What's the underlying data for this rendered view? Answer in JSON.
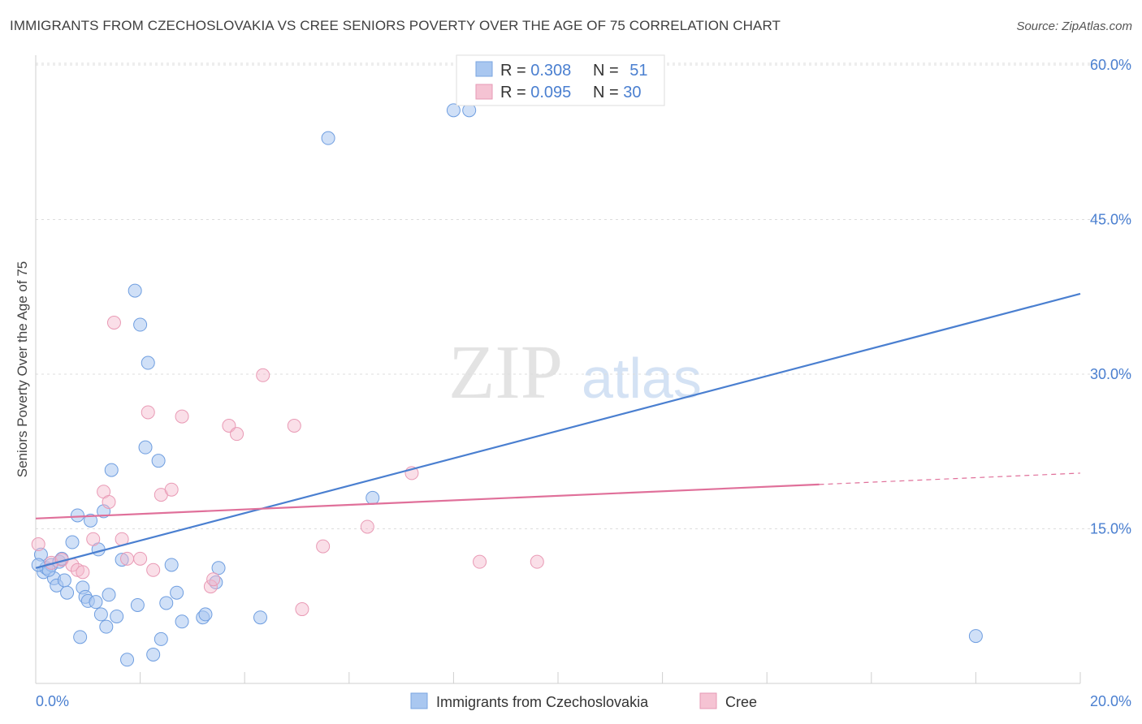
{
  "title": "IMMIGRANTS FROM CZECHOSLOVAKIA VS CREE SENIORS POVERTY OVER THE AGE OF 75 CORRELATION CHART",
  "source": "Source: ZipAtlas.com",
  "watermark": {
    "zip": "ZIP",
    "atlas": "atlas"
  },
  "colors": {
    "blue": "#4a7fd0",
    "blue_fill": "#a9c7f0",
    "pink": "#e0709a",
    "pink_fill": "#f5b8cb",
    "grid": "#dddddd"
  },
  "legend": {
    "series1": {
      "r_label": "R = ",
      "r_value": "0.308",
      "n_label": "N = ",
      "n_value": "51"
    },
    "series2": {
      "r_label": "R = ",
      "r_value": "0.095",
      "n_label": "N = ",
      "n_value": "30"
    }
  },
  "bottom_legend": {
    "series1": "Immigrants from Czechoslovakia",
    "series2": "Cree"
  },
  "chart_data": {
    "type": "scatter",
    "title": "IMMIGRANTS FROM CZECHOSLOVAKIA VS CREE SENIORS POVERTY OVER THE AGE OF 75 CORRELATION CHART",
    "xlabel": "",
    "ylabel": "Seniors Poverty Over the Age of 75",
    "xlim": [
      0,
      20
    ],
    "ylim": [
      0,
      60
    ],
    "x_tick_labels": [
      "0.0%",
      "20.0%"
    ],
    "y_ticks": [
      15,
      30,
      45,
      60
    ],
    "y_tick_labels": [
      "15.0%",
      "30.0%",
      "45.0%",
      "60.0%"
    ],
    "series": [
      {
        "name": "Immigrants from Czechoslovakia",
        "r": 0.308,
        "n": 51,
        "trend": {
          "x0": 0,
          "y0": 11.2,
          "x1": 20,
          "y1": 37.8
        },
        "points": [
          [
            0.1,
            12.5
          ],
          [
            0.15,
            10.8
          ],
          [
            0.2,
            11.2
          ],
          [
            0.3,
            11.5
          ],
          [
            0.35,
            10.2
          ],
          [
            0.4,
            9.5
          ],
          [
            0.45,
            11.8
          ],
          [
            0.5,
            12.1
          ],
          [
            0.55,
            10.0
          ],
          [
            0.6,
            8.8
          ],
          [
            0.7,
            13.7
          ],
          [
            0.8,
            16.3
          ],
          [
            0.85,
            4.5
          ],
          [
            0.9,
            9.3
          ],
          [
            0.95,
            8.4
          ],
          [
            1.0,
            8.0
          ],
          [
            1.05,
            15.8
          ],
          [
            1.15,
            7.9
          ],
          [
            1.2,
            13.0
          ],
          [
            1.25,
            6.7
          ],
          [
            1.3,
            16.7
          ],
          [
            1.35,
            5.5
          ],
          [
            1.4,
            8.6
          ],
          [
            1.45,
            20.7
          ],
          [
            1.55,
            6.5
          ],
          [
            1.65,
            12.0
          ],
          [
            1.75,
            2.3
          ],
          [
            1.9,
            38.1
          ],
          [
            1.95,
            7.6
          ],
          [
            2.0,
            34.8
          ],
          [
            2.1,
            22.9
          ],
          [
            2.15,
            31.1
          ],
          [
            2.25,
            2.8
          ],
          [
            2.35,
            21.6
          ],
          [
            2.4,
            4.3
          ],
          [
            2.5,
            7.8
          ],
          [
            2.6,
            11.5
          ],
          [
            2.7,
            8.8
          ],
          [
            2.8,
            6.0
          ],
          [
            3.2,
            6.4
          ],
          [
            3.25,
            6.7
          ],
          [
            3.45,
            9.8
          ],
          [
            3.5,
            11.2
          ],
          [
            4.3,
            6.4
          ],
          [
            5.6,
            52.9
          ],
          [
            6.45,
            18.0
          ],
          [
            8.0,
            55.6
          ],
          [
            8.3,
            55.6
          ],
          [
            18.0,
            4.6
          ],
          [
            0.05,
            11.5
          ],
          [
            0.25,
            11.0
          ]
        ]
      },
      {
        "name": "Cree",
        "r": 0.095,
        "n": 30,
        "trend": {
          "x0": 0,
          "y0": 16.0,
          "x1": 15.0,
          "y1": 19.3,
          "dash_to_x": 20,
          "dash_to_y": 20.4
        },
        "points": [
          [
            0.05,
            13.5
          ],
          [
            0.3,
            11.7
          ],
          [
            0.5,
            12.0
          ],
          [
            0.7,
            11.5
          ],
          [
            0.8,
            11.0
          ],
          [
            0.9,
            10.8
          ],
          [
            1.1,
            14.0
          ],
          [
            1.3,
            18.6
          ],
          [
            1.4,
            17.6
          ],
          [
            1.5,
            35.0
          ],
          [
            1.65,
            14.0
          ],
          [
            1.75,
            12.1
          ],
          [
            2.0,
            12.1
          ],
          [
            2.15,
            26.3
          ],
          [
            2.25,
            11.0
          ],
          [
            2.4,
            18.3
          ],
          [
            2.6,
            18.8
          ],
          [
            2.8,
            25.9
          ],
          [
            3.35,
            9.4
          ],
          [
            3.4,
            10.1
          ],
          [
            3.7,
            25.0
          ],
          [
            3.85,
            24.2
          ],
          [
            4.35,
            29.9
          ],
          [
            4.95,
            25.0
          ],
          [
            5.1,
            7.2
          ],
          [
            5.5,
            13.3
          ],
          [
            6.35,
            15.2
          ],
          [
            7.2,
            20.4
          ],
          [
            8.5,
            11.8
          ],
          [
            9.6,
            11.8
          ]
        ]
      }
    ]
  }
}
